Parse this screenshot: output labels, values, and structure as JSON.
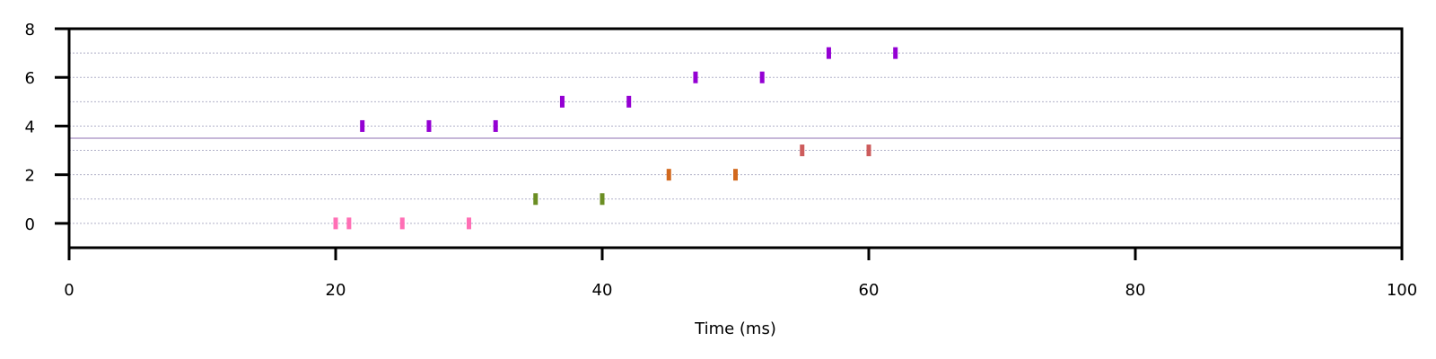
{
  "chart_data": {
    "type": "scatter",
    "title": "",
    "xlabel": "Time (ms)",
    "ylabel": "",
    "xlim": [
      0,
      100
    ],
    "ylim": [
      -1,
      8
    ],
    "xticks": [
      0,
      20,
      40,
      60,
      80,
      100
    ],
    "yticks": [
      0,
      2,
      4,
      6,
      8
    ],
    "grid": {
      "horizontal": true,
      "rows": [
        0,
        1,
        2,
        3,
        4,
        5,
        6,
        7
      ],
      "style": "dotted"
    },
    "separator_y": 3.5,
    "separator_color": "#8e6fb0",
    "marker": "vertical-tick",
    "series": [
      {
        "color": "#ff6fb5",
        "x": [
          20,
          21,
          25,
          30
        ],
        "y": [
          0,
          0,
          0,
          0
        ]
      },
      {
        "color": "#6b8e23",
        "x": [
          35,
          40
        ],
        "y": [
          1,
          1
        ]
      },
      {
        "color": "#d2691e",
        "x": [
          45,
          50
        ],
        "y": [
          2,
          2
        ]
      },
      {
        "color": "#cd5c5c",
        "x": [
          55,
          60
        ],
        "y": [
          3,
          3
        ]
      },
      {
        "color": "#9400d3",
        "x": [
          22,
          27,
          32
        ],
        "y": [
          4,
          4,
          4
        ]
      },
      {
        "color": "#9400d3",
        "x": [
          37,
          42
        ],
        "y": [
          5,
          5
        ]
      },
      {
        "color": "#9400d3",
        "x": [
          47,
          52
        ],
        "y": [
          6,
          6
        ]
      },
      {
        "color": "#9400d3",
        "x": [
          57,
          62
        ],
        "y": [
          7,
          7
        ]
      }
    ]
  }
}
